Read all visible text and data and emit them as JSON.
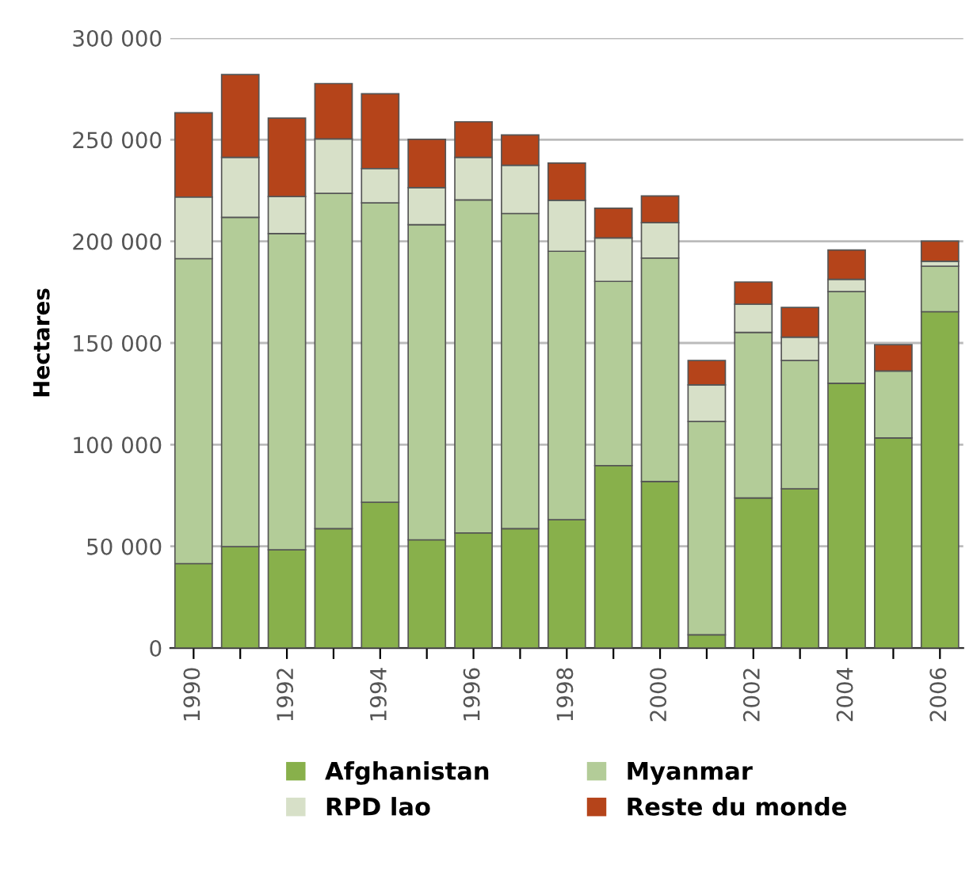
{
  "chart_data": {
    "type": "bar",
    "stacked": true,
    "ylabel": "Hectares",
    "categories": [
      "1990",
      null,
      "1992",
      null,
      "1994",
      null,
      "1996",
      null,
      "1998",
      null,
      "2000",
      null,
      "2002",
      null,
      "2004",
      null,
      "2006"
    ],
    "series": [
      {
        "name": "Afghanistan",
        "color": "#88b04b",
        "values": [
          41500,
          49800,
          48300,
          58700,
          71700,
          53200,
          56600,
          58700,
          63100,
          89700,
          81900,
          6500,
          73800,
          78300,
          130200,
          103300,
          165400
        ]
      },
      {
        "name": "Myanmar",
        "color": "#b3cc98",
        "values": [
          150000,
          162000,
          155500,
          164900,
          147200,
          155000,
          163800,
          155000,
          132000,
          90600,
          109900,
          104900,
          81400,
          63100,
          45100,
          32900,
          22400
        ]
      },
      {
        "name": "RPD lao",
        "color": "#d7e0c8",
        "values": [
          30300,
          29500,
          18200,
          26800,
          16900,
          18200,
          20900,
          23700,
          25100,
          21400,
          17400,
          18000,
          13900,
          11500,
          6000,
          null,
          2400
        ]
      },
      {
        "name": "Reste du monde",
        "color": "#b5441a",
        "values": [
          41400,
          40700,
          38600,
          27200,
          36800,
          23800,
          17500,
          14900,
          18300,
          14600,
          13100,
          12000,
          10900,
          14600,
          14400,
          13000,
          9900
        ]
      }
    ],
    "ylim": [
      0,
      300000
    ],
    "yticks": [
      0,
      {
        "value": 50000,
        "label": "50 000"
      },
      {
        "value": 100000,
        "label": "100 000"
      },
      {
        "value": 150000,
        "label": "150 000"
      },
      {
        "value": 200000,
        "label": "200 000"
      },
      {
        "value": 250000,
        "label": "250 000"
      },
      {
        "value": 300000,
        "label": "300 000"
      }
    ],
    "grid": "y",
    "legend": "bottom"
  }
}
